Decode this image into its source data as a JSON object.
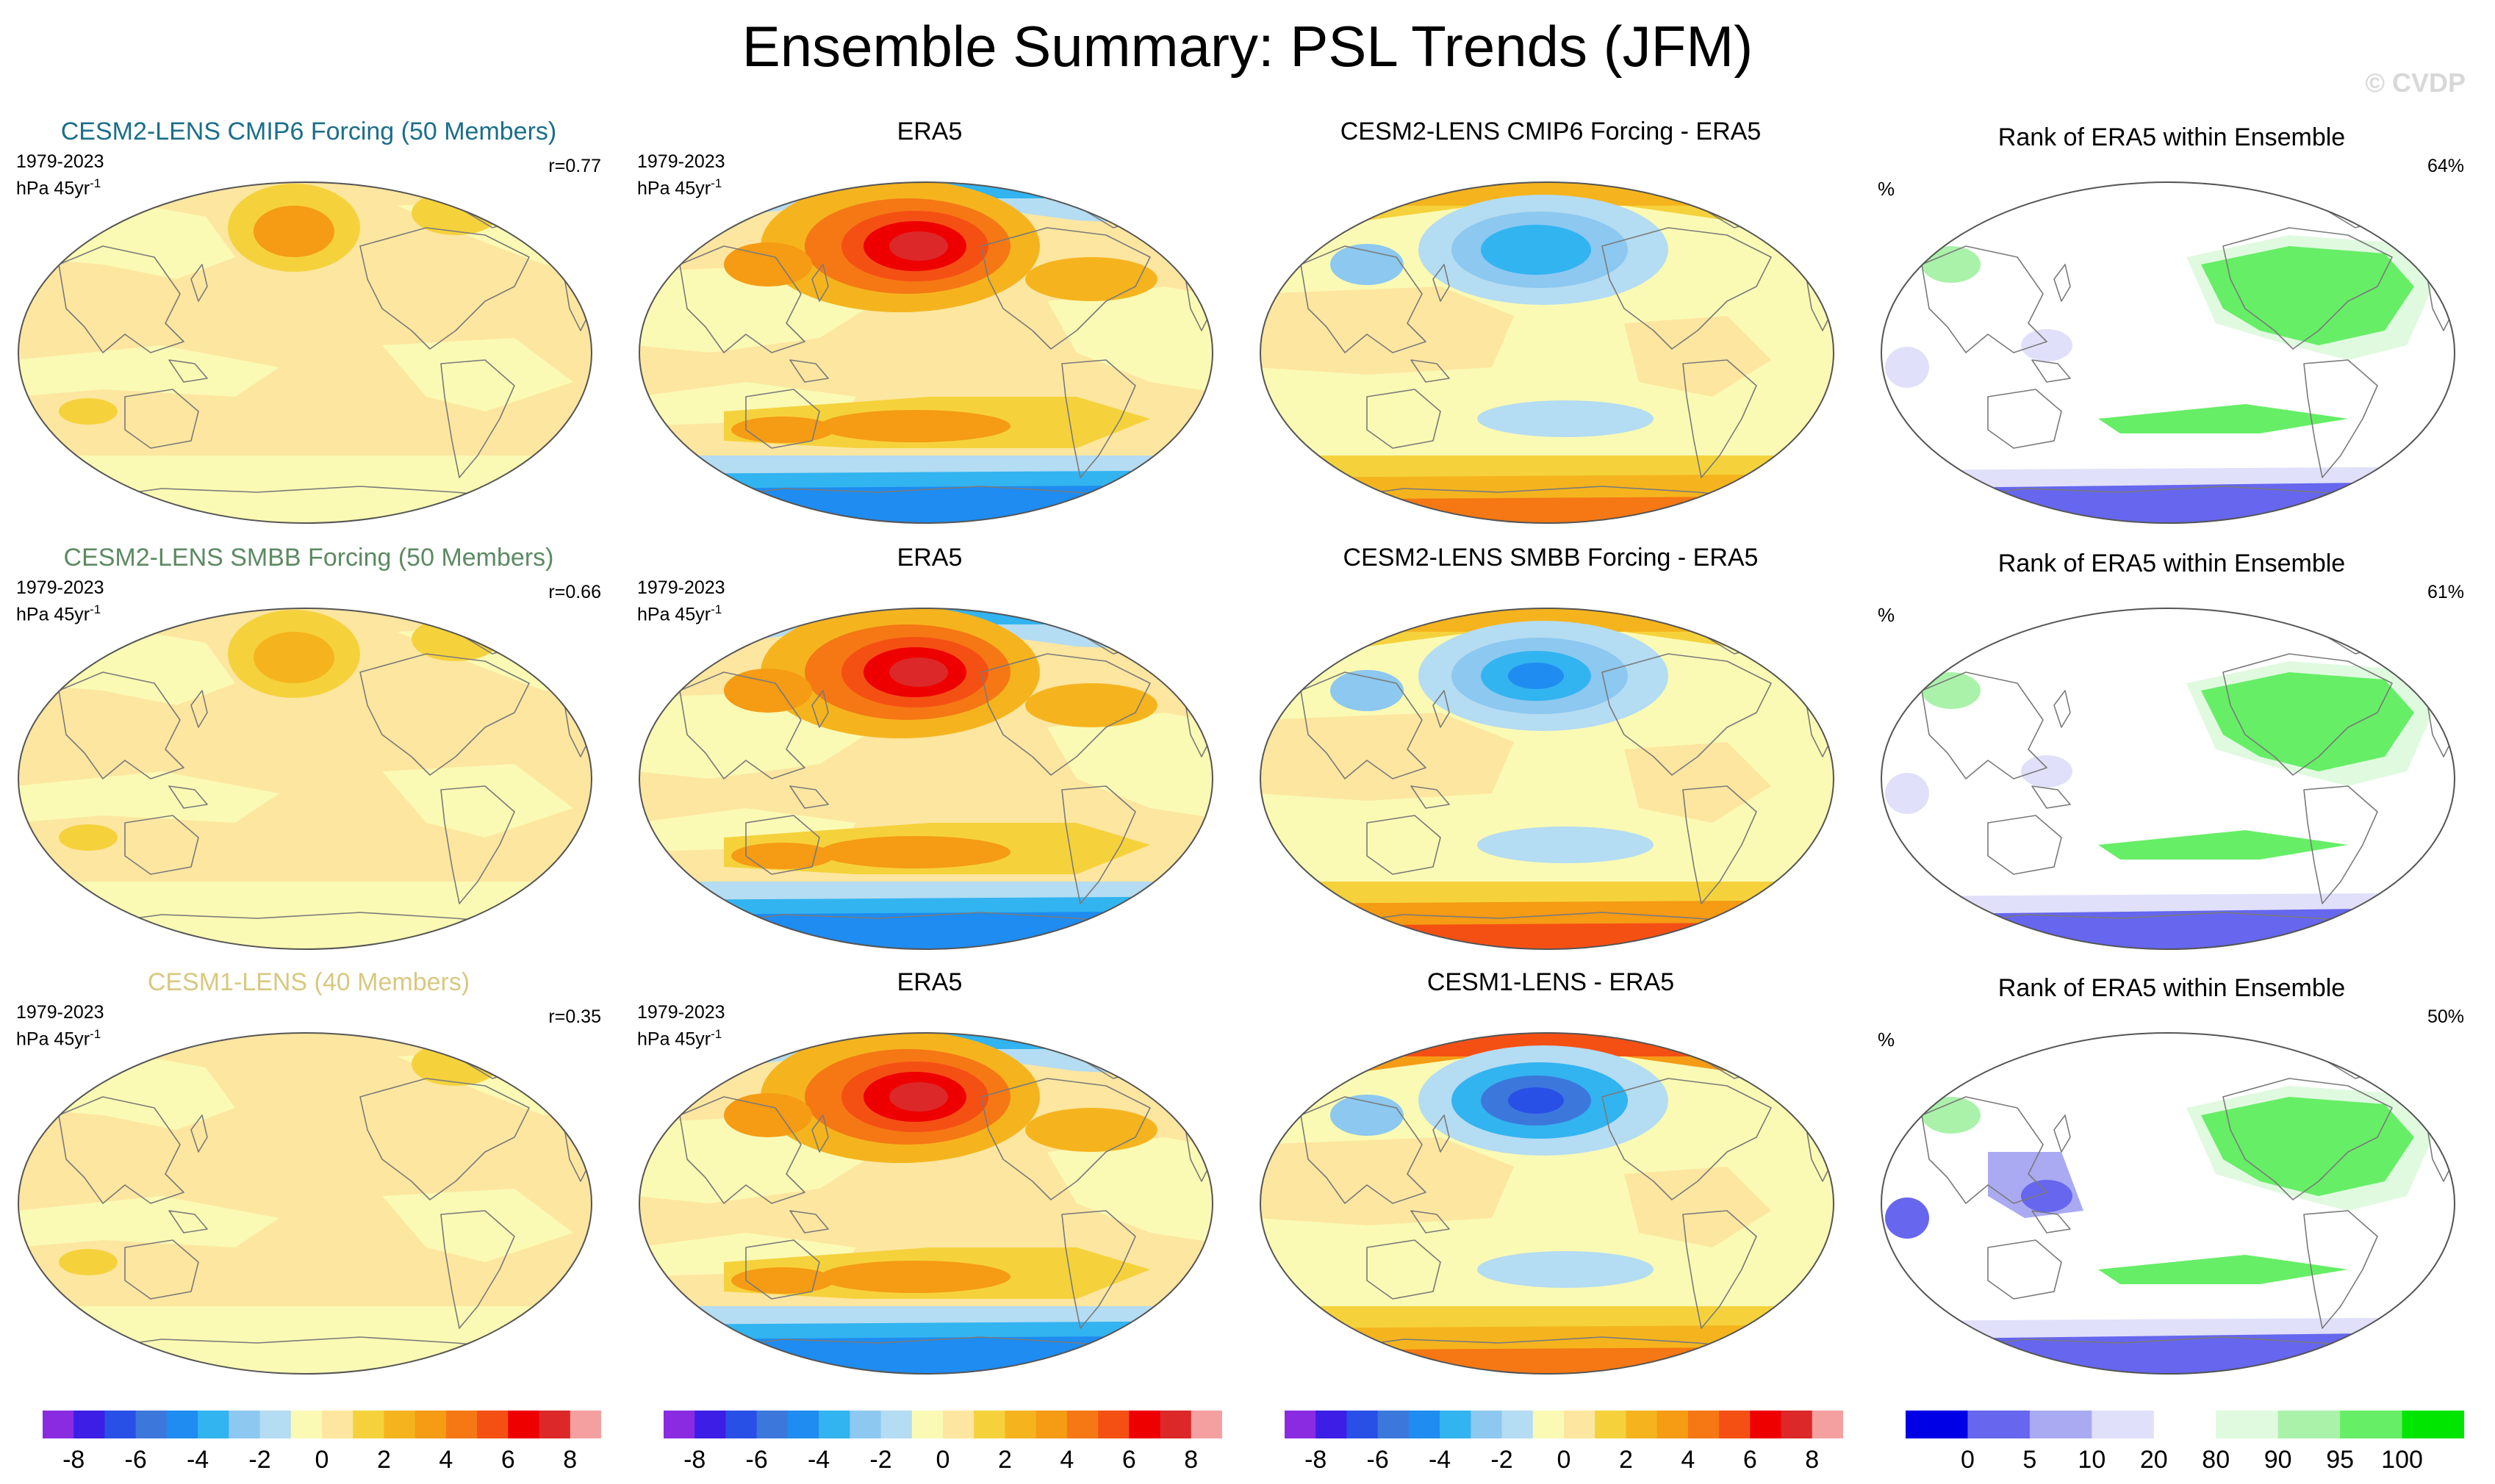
{
  "title": "Ensemble Summary: PSL Trends (JFM)",
  "watermark": "© CVDP",
  "chart_data": {
    "type": "heatmap",
    "title": "Ensemble Summary: PSL Trends (JFM)",
    "projection": "Robinson global maps (values are qualitative estimates of colored regions)",
    "trend_colorbar": {
      "units": "hPa 45yr-1",
      "levels": [
        -9,
        -8,
        -7,
        -6,
        -5,
        -4,
        -3,
        -2,
        -1,
        0,
        1,
        2,
        3,
        4,
        5,
        6,
        7,
        8,
        9
      ],
      "colors": [
        "#8a2be2",
        "#3c1ee6",
        "#2850e6",
        "#3c78dc",
        "#1e8cf0",
        "#32b4f0",
        "#8cc8ef",
        "#b4dcf2",
        "#fafab4",
        "#fde6a0",
        "#f5d23c",
        "#f5b41e",
        "#f59b14",
        "#f57814",
        "#f55014",
        "#ee0000",
        "#dc2828",
        "#f5a0a0"
      ],
      "tick_labels": [
        "-8",
        "-6",
        "-4",
        "-2",
        "0",
        "2",
        "4",
        "6",
        "8"
      ],
      "tick_values": [
        -8,
        -6,
        -4,
        -2,
        0,
        2,
        4,
        6,
        8
      ]
    },
    "rank_colorbar": {
      "units": "%",
      "boundaries": [
        0,
        5,
        10,
        20,
        80,
        90,
        95,
        100
      ],
      "colors": [
        "#0000e6",
        "#6666ee",
        "#aaaaf2",
        "#e0e0fa",
        "#ffffff",
        "#e0fae0",
        "#aaf2aa",
        "#66ee66",
        "#00e600"
      ],
      "tick_labels": [
        "0",
        "5",
        "10",
        "20",
        "80",
        "90",
        "95",
        "100"
      ]
    },
    "rows": [
      {
        "model": "CESM2-LENS CMIP6 Forcing (50 Members)",
        "model_color": "#1b6e8a",
        "period": "1979-2023",
        "units_prefix": "hPa 45yr",
        "units_exp": "-1",
        "pattern_correlation": "r=0.77",
        "obs_title": "ERA5",
        "diff_title": "CESM2-LENS CMIP6 Forcing - ERA5",
        "rank_title": "Rank of ERA5 within Ensemble",
        "rank_unit": "%",
        "rank_value": "64%",
        "model_features": [
          {
            "region": "North Pacific",
            "value": 3.0
          },
          {
            "region": "Arctic / Barents",
            "value": 1.5
          },
          {
            "region": "Southern Ocean ring",
            "value": -1.0
          },
          {
            "region": "Tropics / subtropics",
            "value": 0.5
          }
        ],
        "obs_features": [
          {
            "region": "North Pacific (Aleutian)",
            "value": 7.0
          },
          {
            "region": "Southern mid-latitudes",
            "value": 3.0
          },
          {
            "region": "Antarctic margin",
            "value": -5.0
          },
          {
            "region": "Arctic",
            "value": -2.0
          }
        ],
        "diff_features": [
          {
            "region": "North Pacific",
            "value": -4.0
          },
          {
            "region": "Antarctic margin",
            "value": 4.0
          },
          {
            "region": "Eurasia / Arctic rim",
            "value": 2.0
          }
        ],
        "rank_features": [
          {
            "region": "Tropical Atlantic / Africa",
            "value": 97
          },
          {
            "region": "Maritime Continent",
            "value": 12
          },
          {
            "region": "Antarctic margin",
            "value": 3
          }
        ]
      },
      {
        "model": "CESM2-LENS SMBB Forcing (50 Members)",
        "model_color": "#5c8a62",
        "period": "1979-2023",
        "units_prefix": "hPa 45yr",
        "units_exp": "-1",
        "pattern_correlation": "r=0.66",
        "obs_title": "ERA5",
        "diff_title": "CESM2-LENS SMBB Forcing - ERA5",
        "rank_title": "Rank of ERA5 within Ensemble",
        "rank_unit": "%",
        "rank_value": "61%",
        "model_features": [
          {
            "region": "North Pacific",
            "value": 2.0
          },
          {
            "region": "Arctic / Barents",
            "value": 1.0
          },
          {
            "region": "Southern Ocean ring",
            "value": -1.0
          },
          {
            "region": "Tropics / subtropics",
            "value": 0.5
          }
        ],
        "obs_features": [
          {
            "region": "North Pacific (Aleutian)",
            "value": 7.0
          },
          {
            "region": "Southern mid-latitudes",
            "value": 3.0
          },
          {
            "region": "Antarctic margin",
            "value": -5.0
          },
          {
            "region": "Arctic",
            "value": -2.0
          }
        ],
        "diff_features": [
          {
            "region": "North Pacific",
            "value": -5.0
          },
          {
            "region": "Antarctic margin",
            "value": 5.0
          },
          {
            "region": "Eurasia / Arctic rim",
            "value": 2.0
          }
        ],
        "rank_features": [
          {
            "region": "Tropical Atlantic / Africa",
            "value": 96
          },
          {
            "region": "Maritime Continent",
            "value": 15
          },
          {
            "region": "Antarctic margin",
            "value": 2
          }
        ]
      },
      {
        "model": "CESM1-LENS (40 Members)",
        "model_color": "#d8c880",
        "period": "1979-2023",
        "units_prefix": "hPa 45yr",
        "units_exp": "-1",
        "pattern_correlation": "r=0.35",
        "obs_title": "ERA5",
        "diff_title": "CESM1-LENS - ERA5",
        "rank_title": "Rank of ERA5 within Ensemble",
        "rank_unit": "%",
        "rank_value": "50%",
        "model_features": [
          {
            "region": "North Pacific",
            "value": 0.5
          },
          {
            "region": "Arctic / Barents",
            "value": 1.5
          },
          {
            "region": "Southern Ocean ring",
            "value": -1.0
          },
          {
            "region": "Tropics / subtropics",
            "value": 0.5
          }
        ],
        "obs_features": [
          {
            "region": "North Pacific (Aleutian)",
            "value": 7.0
          },
          {
            "region": "Southern mid-latitudes",
            "value": 3.0
          },
          {
            "region": "Antarctic margin",
            "value": -5.0
          },
          {
            "region": "Arctic",
            "value": -2.0
          }
        ],
        "diff_features": [
          {
            "region": "North Pacific",
            "value": -7.0
          },
          {
            "region": "Antarctic margin",
            "value": 4.0
          },
          {
            "region": "Arctic rim",
            "value": 5.0
          }
        ],
        "rank_features": [
          {
            "region": "Tropical Atlantic / Africa",
            "value": 98
          },
          {
            "region": "Maritime Continent",
            "value": 3
          },
          {
            "region": "Antarctic margin",
            "value": 3
          }
        ]
      }
    ]
  }
}
